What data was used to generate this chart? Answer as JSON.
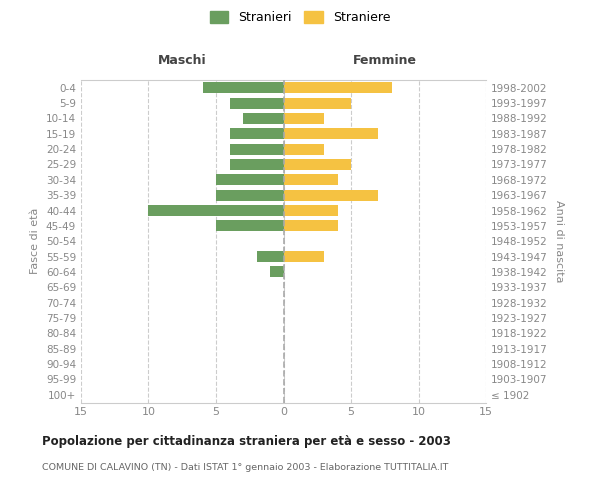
{
  "age_groups": [
    "100+",
    "95-99",
    "90-94",
    "85-89",
    "80-84",
    "75-79",
    "70-74",
    "65-69",
    "60-64",
    "55-59",
    "50-54",
    "45-49",
    "40-44",
    "35-39",
    "30-34",
    "25-29",
    "20-24",
    "15-19",
    "10-14",
    "5-9",
    "0-4"
  ],
  "birth_years": [
    "≤ 1902",
    "1903-1907",
    "1908-1912",
    "1913-1917",
    "1918-1922",
    "1923-1927",
    "1928-1932",
    "1933-1937",
    "1938-1942",
    "1943-1947",
    "1948-1952",
    "1953-1957",
    "1958-1962",
    "1963-1967",
    "1968-1972",
    "1973-1977",
    "1978-1982",
    "1983-1987",
    "1988-1992",
    "1993-1997",
    "1998-2002"
  ],
  "males": [
    0,
    0,
    0,
    0,
    0,
    0,
    0,
    0,
    1,
    2,
    0,
    5,
    10,
    5,
    5,
    4,
    4,
    4,
    3,
    4,
    6
  ],
  "females": [
    0,
    0,
    0,
    0,
    0,
    0,
    0,
    0,
    0,
    3,
    0,
    4,
    4,
    7,
    4,
    5,
    3,
    7,
    3,
    5,
    8
  ],
  "male_color": "#6a9e5f",
  "female_color": "#f5c242",
  "grid_color": "#cccccc",
  "bar_height": 0.72,
  "xlim": 15,
  "title": "Popolazione per cittadinanza straniera per età e sesso - 2003",
  "subtitle": "COMUNE DI CALAVINO (TN) - Dati ISTAT 1° gennaio 2003 - Elaborazione TUTTITALIA.IT",
  "ylabel_left": "Fasce di età",
  "ylabel_right": "Anni di nascita",
  "xlabel_left": "Maschi",
  "xlabel_right": "Femmine",
  "legend_stranieri": "Stranieri",
  "legend_straniere": "Straniere",
  "bg_color": "#ffffff",
  "axis_label_color": "#888888",
  "title_color": "#222222",
  "subtitle_color": "#666666"
}
